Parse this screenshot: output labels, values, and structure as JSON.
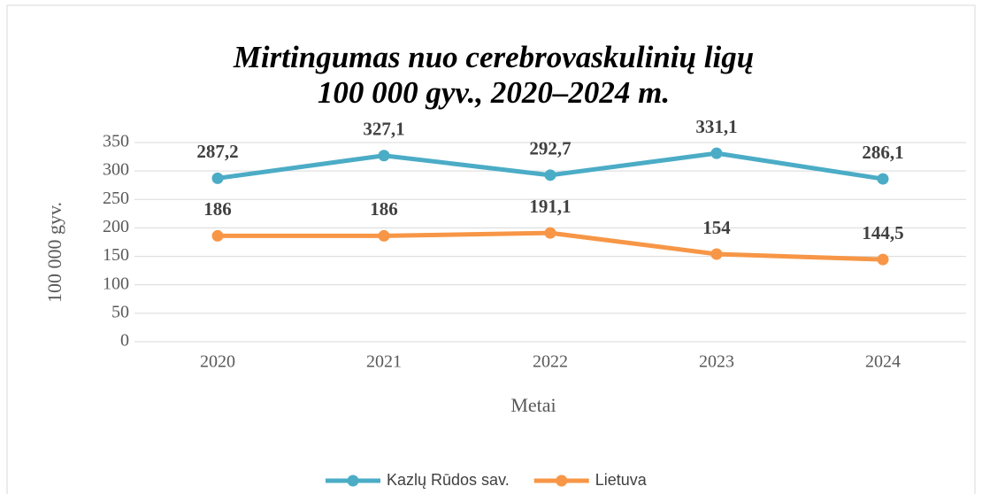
{
  "chart_data": {
    "type": "line",
    "title": [
      "Mirtingumas nuo cerebrovaskulinių ligų",
      "100 000 gyv., 2020–2024 m."
    ],
    "x_label": "Metai",
    "y_label": "100 000 gyv.",
    "categories": [
      "2020",
      "2021",
      "2022",
      "2023",
      "2024"
    ],
    "series": [
      {
        "name": "Kazlų Rūdos sav.",
        "color": "#4bacc6",
        "values": [
          287.2,
          327.1,
          292.7,
          331.1,
          286.1
        ],
        "value_labels": [
          "287,2",
          "327,1",
          "292,7",
          "331,1",
          "286,1"
        ]
      },
      {
        "name": "Lietuva",
        "color": "#f79646",
        "values": [
          186,
          186,
          191.1,
          154,
          144.5
        ],
        "value_labels": [
          "186",
          "186",
          "191,1",
          "154",
          "144,5"
        ]
      }
    ],
    "ylim": [
      0,
      350
    ],
    "yticks": [
      0,
      50,
      100,
      150,
      200,
      250,
      300,
      350
    ],
    "grid": true,
    "legend": "bottom"
  }
}
